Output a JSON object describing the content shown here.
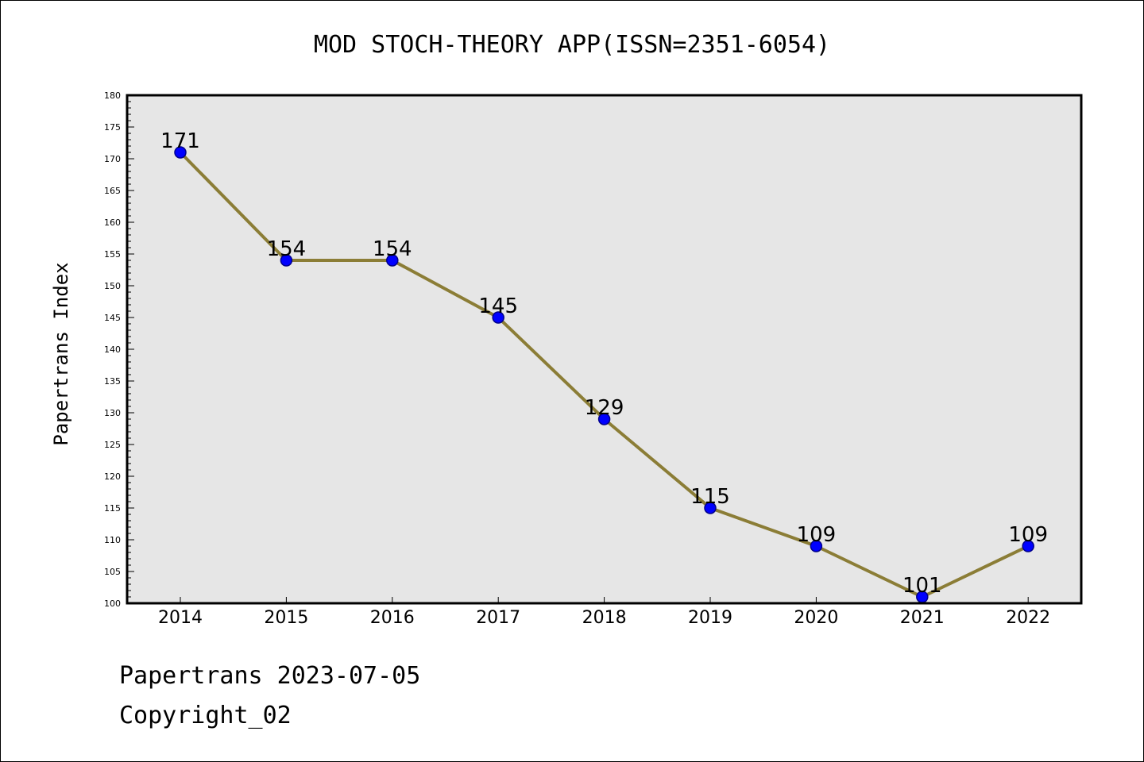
{
  "chart_data": {
    "type": "line",
    "title": "MOD STOCH-THEORY APP(ISSN=2351-6054)",
    "xlabel": "",
    "ylabel": "Papertrans Index",
    "categories": [
      "2014",
      "2015",
      "2016",
      "2017",
      "2018",
      "2019",
      "2020",
      "2021",
      "2022"
    ],
    "values": [
      171,
      154,
      154,
      145,
      129,
      115,
      109,
      101,
      109
    ],
    "ylim": [
      100,
      180
    ],
    "yticks": [
      100,
      105,
      110,
      115,
      120,
      125,
      130,
      135,
      140,
      145,
      150,
      155,
      160,
      165,
      170,
      175,
      180
    ],
    "data_labels": true,
    "grid": false,
    "colors": {
      "plot_background": "#e6e6e6",
      "line": "#8b7d36",
      "marker_fill": "#0000ff",
      "marker_edge": "#00008b"
    }
  },
  "footer": {
    "line1": "Papertrans 2023-07-05",
    "line2": "Copyright_02"
  }
}
